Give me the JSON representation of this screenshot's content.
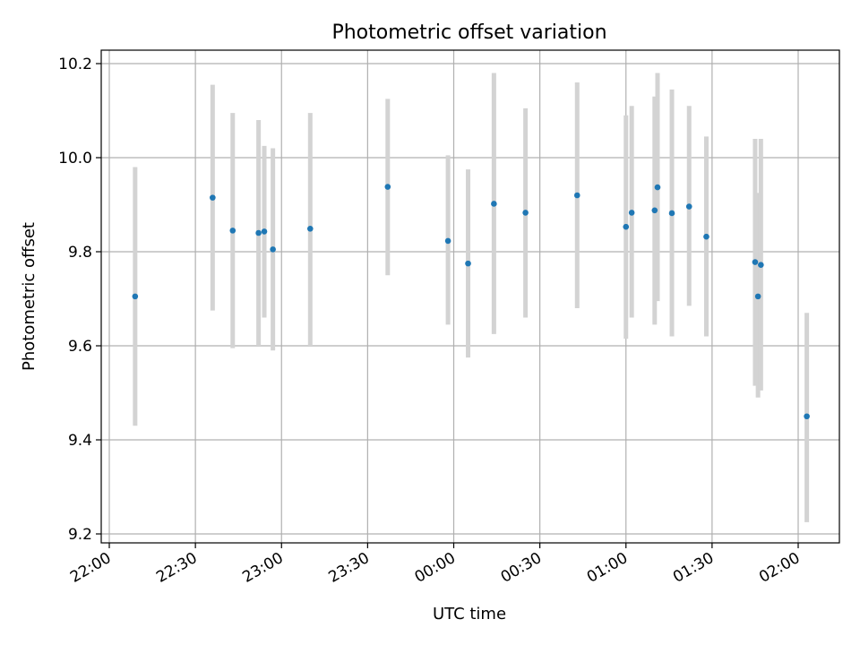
{
  "chart_data": {
    "type": "scatter",
    "title": "Photometric offset variation",
    "xlabel": "UTC time",
    "ylabel": "Photometric offset",
    "x_tick_labels": [
      "22:00",
      "22:30",
      "23:00",
      "23:30",
      "00:00",
      "00:30",
      "01:00",
      "01:30",
      "02:00"
    ],
    "y_tick_labels": [
      "9.2",
      "9.4",
      "9.6",
      "9.8",
      "10.0",
      "10.2"
    ],
    "x_axis": "UTC time (HH:MM), 22:00 to 02:00 across midnight",
    "ylim": [
      9.18,
      10.23
    ],
    "grid": true,
    "point_color": "#1f77b4",
    "errorbar_color": "#d3d3d3",
    "points": [
      {
        "x": "22:09",
        "y": 9.705,
        "low": 9.43,
        "high": 9.98
      },
      {
        "x": "22:36",
        "y": 9.915,
        "low": 9.675,
        "high": 10.155
      },
      {
        "x": "22:43",
        "y": 9.845,
        "low": 9.595,
        "high": 10.095
      },
      {
        "x": "22:52",
        "y": 9.84,
        "low": 9.6,
        "high": 10.08
      },
      {
        "x": "22:54",
        "y": 9.843,
        "low": 9.66,
        "high": 10.025
      },
      {
        "x": "22:57",
        "y": 9.805,
        "low": 9.59,
        "high": 10.02
      },
      {
        "x": "23:10",
        "y": 9.849,
        "low": 9.6,
        "high": 10.095
      },
      {
        "x": "23:37",
        "y": 9.938,
        "low": 9.75,
        "high": 10.125
      },
      {
        "x": "23:58",
        "y": 9.823,
        "low": 9.645,
        "high": 10.005
      },
      {
        "x": "00:05",
        "y": 9.775,
        "low": 9.575,
        "high": 9.975
      },
      {
        "x": "00:14",
        "y": 9.902,
        "low": 9.625,
        "high": 10.18
      },
      {
        "x": "00:25",
        "y": 9.883,
        "low": 9.66,
        "high": 10.105
      },
      {
        "x": "00:43",
        "y": 9.92,
        "low": 9.68,
        "high": 10.16
      },
      {
        "x": "01:00",
        "y": 9.853,
        "low": 9.615,
        "high": 10.09
      },
      {
        "x": "01:02",
        "y": 9.883,
        "low": 9.66,
        "high": 10.11
      },
      {
        "x": "01:10",
        "y": 9.888,
        "low": 9.645,
        "high": 10.13
      },
      {
        "x": "01:11",
        "y": 9.937,
        "low": 9.695,
        "high": 10.18
      },
      {
        "x": "01:16",
        "y": 9.882,
        "low": 9.62,
        "high": 10.145
      },
      {
        "x": "01:22",
        "y": 9.896,
        "low": 9.685,
        "high": 10.11
      },
      {
        "x": "01:28",
        "y": 9.832,
        "low": 9.62,
        "high": 10.045
      },
      {
        "x": "01:45",
        "y": 9.778,
        "low": 9.515,
        "high": 10.04
      },
      {
        "x": "01:46",
        "y": 9.705,
        "low": 9.49,
        "high": 9.925
      },
      {
        "x": "01:47",
        "y": 9.772,
        "low": 9.505,
        "high": 10.04
      },
      {
        "x": "02:03",
        "y": 9.45,
        "low": 9.225,
        "high": 9.67
      }
    ]
  }
}
